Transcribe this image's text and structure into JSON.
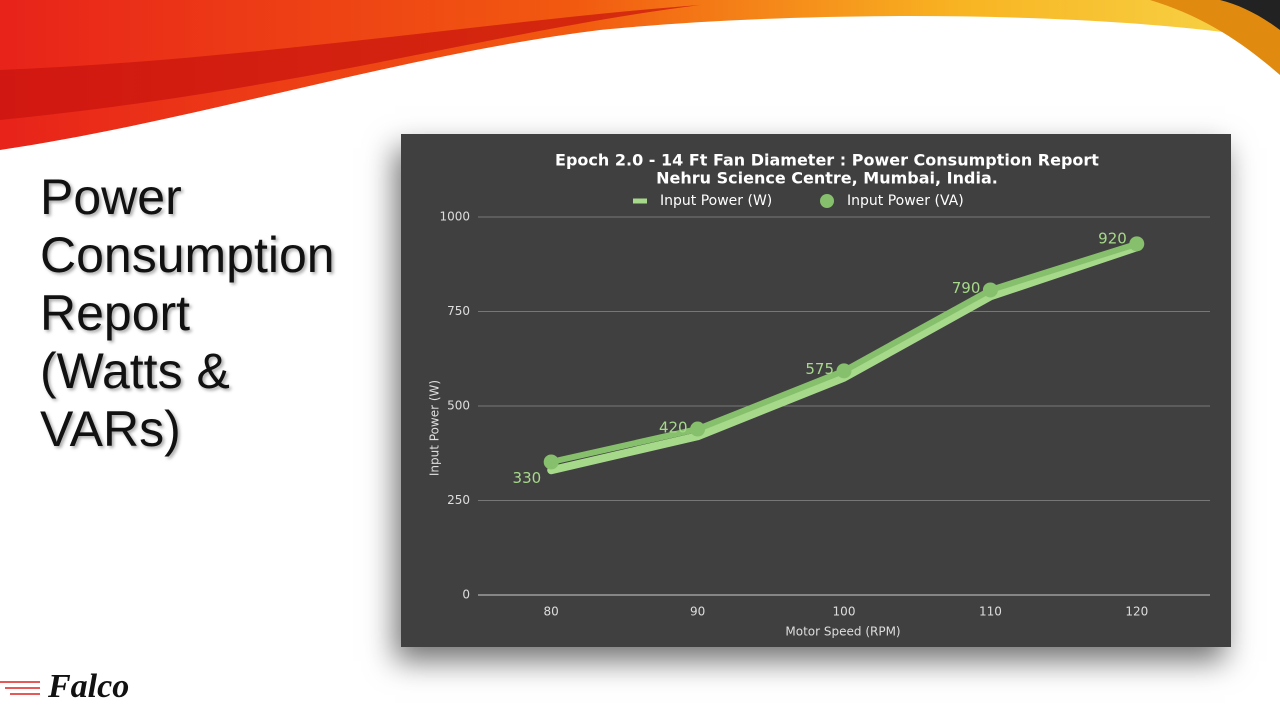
{
  "slide": {
    "title_lines": [
      "Power",
      "Consumption",
      "Report",
      "(Watts &",
      "VARs)"
    ],
    "logo": "Falco"
  },
  "chart_data": {
    "type": "line",
    "title": "Epoch 2.0 - 14 Ft Fan Diameter : Power Consumption Report",
    "subtitle": "Nehru Science Centre, Mumbai, India.",
    "x_label": "Motor Speed (RPM)",
    "y_label": "Input Power (W)",
    "categories": [
      "80",
      "90",
      "100",
      "110",
      "120"
    ],
    "series": [
      {
        "name": "Input Power (W)",
        "color": "#a6d98a",
        "values": [
          330,
          420,
          575,
          790,
          920
        ]
      },
      {
        "name": "Input Power (VA)",
        "color": "#86c06c",
        "values": [
          352,
          439,
          593,
          807,
          929
        ]
      }
    ],
    "ylim": [
      0,
      1000
    ],
    "yticks": [
      0,
      250,
      500,
      750,
      1000
    ],
    "grid": true,
    "legend": "top"
  }
}
